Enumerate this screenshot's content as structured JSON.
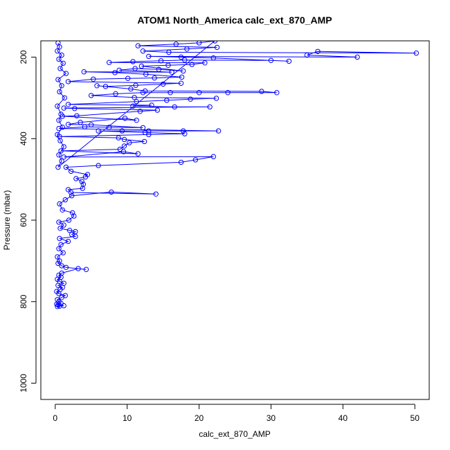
{
  "chart_data": {
    "type": "scatter",
    "title": "ATOM1 North_America calc_ext_870_AMP",
    "xlabel": "calc_ext_870_AMP",
    "ylabel": "Pressure (mbar)",
    "xlim": [
      -2,
      52
    ],
    "ylim": [
      1040,
      160
    ],
    "y_reversed": true,
    "x_ticks": [
      0,
      10,
      20,
      30,
      40,
      50
    ],
    "x_tick_labels": [
      "0",
      "10",
      "20",
      "30",
      "40",
      "50"
    ],
    "y_ticks": [
      200,
      400,
      600,
      800,
      1000
    ],
    "y_tick_labels": [
      "200",
      "400",
      "600",
      "800",
      "1000"
    ],
    "series_color": "#0000ff",
    "marker": "open-circle",
    "connected": true,
    "grid": false,
    "series": [
      {
        "points": [
          [
            0.3,
            812
          ],
          [
            0.6,
            811
          ],
          [
            1.2,
            810
          ],
          [
            0.4,
            808
          ],
          [
            0.2,
            806
          ],
          [
            0.8,
            804
          ],
          [
            0.5,
            800
          ],
          [
            0.3,
            795
          ],
          [
            0.9,
            790
          ],
          [
            1.4,
            785
          ],
          [
            0.5,
            780
          ],
          [
            0.2,
            775
          ],
          [
            0.7,
            770
          ],
          [
            1.0,
            765
          ],
          [
            0.4,
            760
          ],
          [
            1.2,
            755
          ],
          [
            0.6,
            750
          ],
          [
            0.3,
            745
          ],
          [
            0.8,
            740
          ],
          [
            0.5,
            735
          ],
          [
            0.9,
            730
          ],
          [
            3.2,
            719
          ],
          [
            4.3,
            721
          ],
          [
            1.5,
            716
          ],
          [
            0.9,
            712
          ],
          [
            0.4,
            706
          ],
          [
            0.6,
            700
          ],
          [
            0.3,
            690
          ],
          [
            1.1,
            680
          ],
          [
            0.5,
            670
          ],
          [
            0.8,
            660
          ],
          [
            1.8,
            652
          ],
          [
            0.6,
            645
          ],
          [
            2.8,
            640
          ],
          [
            2.3,
            635
          ],
          [
            2.8,
            628
          ],
          [
            2.0,
            625
          ],
          [
            0.7,
            620
          ],
          [
            1.2,
            612
          ],
          [
            0.5,
            605
          ],
          [
            1.9,
            600
          ],
          [
            2.6,
            590
          ],
          [
            2.4,
            582
          ],
          [
            1.0,
            575
          ],
          [
            0.6,
            560
          ],
          [
            1.4,
            550
          ],
          [
            2.3,
            540
          ],
          [
            7.8,
            531
          ],
          [
            14.0,
            536
          ],
          [
            2.2,
            532
          ],
          [
            1.8,
            525
          ],
          [
            3.8,
            522
          ],
          [
            3.9,
            512
          ],
          [
            3.7,
            505
          ],
          [
            2.9,
            498
          ],
          [
            4.2,
            494
          ],
          [
            4.5,
            488
          ],
          [
            2.2,
            480
          ],
          [
            1.5,
            470
          ],
          [
            6.0,
            466
          ],
          [
            17.5,
            458
          ],
          [
            19.5,
            452
          ],
          [
            22.0,
            444
          ],
          [
            1.2,
            445
          ],
          [
            9.5,
            432
          ],
          [
            11.5,
            437
          ],
          [
            0.8,
            430
          ],
          [
            9.0,
            426
          ],
          [
            9.6,
            418
          ],
          [
            10.3,
            410
          ],
          [
            12.4,
            407
          ],
          [
            9.6,
            402
          ],
          [
            8.8,
            398
          ],
          [
            0.6,
            395
          ],
          [
            13.0,
            390
          ],
          [
            18.0,
            388
          ],
          [
            12.5,
            385
          ],
          [
            6.0,
            381
          ],
          [
            9.3,
            381
          ],
          [
            13.0,
            381
          ],
          [
            17.8,
            381
          ],
          [
            22.7,
            381
          ],
          [
            0.5,
            375
          ],
          [
            4.1,
            371
          ],
          [
            7.5,
            372
          ],
          [
            12.2,
            373
          ],
          [
            5.0,
            366
          ],
          [
            1.8,
            365
          ],
          [
            3.5,
            360
          ],
          [
            9.7,
            350
          ],
          [
            11.3,
            355
          ],
          [
            1.0,
            345
          ],
          [
            3.0,
            344
          ],
          [
            11.8,
            333
          ],
          [
            14.2,
            330
          ],
          [
            2.7,
            326
          ],
          [
            1.2,
            325
          ],
          [
            21.5,
            322
          ],
          [
            16.6,
            322
          ],
          [
            10.8,
            320
          ],
          [
            13.4,
            318
          ],
          [
            1.8,
            316
          ],
          [
            11.3,
            309
          ],
          [
            15.5,
            306
          ],
          [
            18.8,
            303
          ],
          [
            22.4,
            301
          ],
          [
            11.0,
            299
          ],
          [
            5.0,
            294
          ],
          [
            8.4,
            290
          ],
          [
            12.2,
            287
          ],
          [
            16.0,
            287
          ],
          [
            20.0,
            287
          ],
          [
            24.0,
            287
          ],
          [
            30.8,
            287
          ],
          [
            28.7,
            284
          ],
          [
            12.5,
            283
          ],
          [
            10.5,
            278
          ],
          [
            5.8,
            270
          ],
          [
            7.0,
            272
          ],
          [
            11.2,
            269
          ],
          [
            15.0,
            266
          ],
          [
            17.5,
            264
          ],
          [
            1.8,
            260
          ],
          [
            5.3,
            254
          ],
          [
            10.1,
            252
          ],
          [
            13.8,
            251
          ],
          [
            17.6,
            249
          ],
          [
            12.6,
            242
          ],
          [
            8.3,
            238
          ],
          [
            4.0,
            236
          ],
          [
            16.2,
            237
          ],
          [
            8.9,
            232
          ],
          [
            11.1,
            228
          ],
          [
            14.4,
            230
          ],
          [
            17.8,
            234
          ],
          [
            12.0,
            222
          ],
          [
            15.7,
            220
          ],
          [
            19.0,
            218
          ],
          [
            20.8,
            214
          ],
          [
            7.5,
            213
          ],
          [
            10.8,
            211
          ],
          [
            14.7,
            209
          ],
          [
            18.0,
            207
          ],
          [
            30.0,
            208
          ],
          [
            32.5,
            210
          ],
          [
            22.0,
            202
          ],
          [
            17.5,
            200
          ],
          [
            13.0,
            198
          ],
          [
            42.0,
            200
          ],
          [
            35.0,
            195
          ],
          [
            36.5,
            186
          ],
          [
            50.2,
            190
          ],
          [
            15.8,
            188
          ],
          [
            12.2,
            185
          ],
          [
            18.3,
            180
          ],
          [
            22.5,
            176
          ],
          [
            11.5,
            172
          ],
          [
            16.8,
            168
          ],
          [
            20.0,
            165
          ],
          [
            22.2,
            160
          ],
          [
            0.4,
            470
          ],
          [
            0.9,
            455
          ],
          [
            0.5,
            440
          ],
          [
            1.2,
            420
          ],
          [
            0.7,
            405
          ],
          [
            0.3,
            390
          ],
          [
            1.0,
            372
          ],
          [
            0.5,
            355
          ],
          [
            0.8,
            340
          ],
          [
            0.3,
            320
          ],
          [
            1.3,
            300
          ],
          [
            0.6,
            285
          ],
          [
            0.9,
            270
          ],
          [
            0.4,
            255
          ],
          [
            1.5,
            240
          ],
          [
            0.7,
            228
          ],
          [
            1.1,
            215
          ],
          [
            0.5,
            205
          ],
          [
            0.9,
            195
          ],
          [
            0.3,
            185
          ],
          [
            0.6,
            175
          ],
          [
            0.4,
            165
          ]
        ]
      }
    ]
  }
}
